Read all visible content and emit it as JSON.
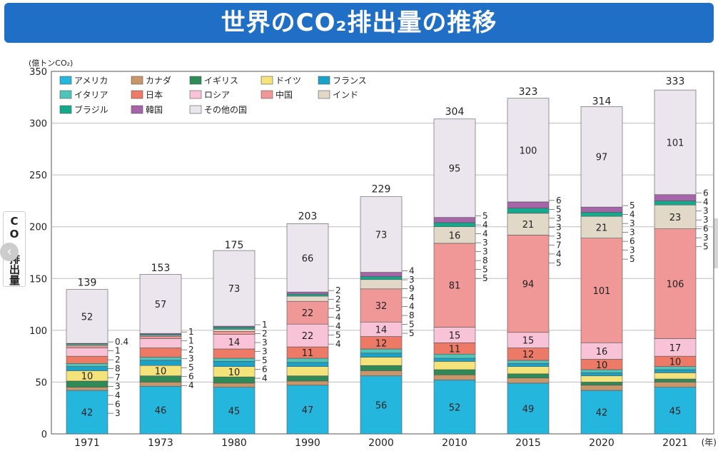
{
  "title": "世界のCO₂排出量の推移",
  "side_label": "CO₂排出量",
  "colors": {
    "banner": "#1f6fc6"
  },
  "chart_data": {
    "type": "bar",
    "stacked": true,
    "ylabel": "(億トンCO₂)",
    "xlabel": "(年)",
    "ylim": [
      0,
      350
    ],
    "yticks": [
      0,
      50,
      100,
      150,
      200,
      250,
      300,
      350
    ],
    "grid": true,
    "legend_position": "top-left",
    "categories": [
      "1971",
      "1973",
      "1980",
      "1990",
      "2000",
      "2010",
      "2015",
      "2020",
      "2021"
    ],
    "totals": [
      139,
      153,
      175,
      203,
      229,
      304,
      323,
      314,
      333
    ],
    "series": [
      {
        "name": "アメリカ",
        "color": "#25b6de",
        "values": [
          42,
          46,
          45,
          47,
          56,
          52,
          49,
          42,
          45
        ]
      },
      {
        "name": "カナダ",
        "color": "#c8966a",
        "values": [
          3,
          4,
          4,
          4,
          5,
          5,
          5,
          5,
          5
        ]
      },
      {
        "name": "イギリス",
        "color": "#2e8b57",
        "values": [
          6,
          6,
          6,
          5,
          5,
          5,
          4,
          3,
          3
        ]
      },
      {
        "name": "ドイツ",
        "color": "#f3e37a",
        "values": [
          10,
          10,
          10,
          9,
          8,
          8,
          7,
          6,
          6
        ]
      },
      {
        "name": "フランス",
        "color": "#1ba2c8",
        "values": [
          4,
          5,
          5,
          4,
          4,
          3,
          3,
          3,
          3
        ]
      },
      {
        "name": "イタリア",
        "color": "#4fc4ba",
        "values": [
          3,
          3,
          3,
          4,
          4,
          4,
          3,
          3,
          3
        ]
      },
      {
        "name": "日本",
        "color": "#ec7a66",
        "values": [
          7,
          9,
          9,
          11,
          12,
          11,
          12,
          10,
          10
        ]
      },
      {
        "name": "ロシア",
        "color": "#f8c3d6",
        "values": [
          8,
          9,
          14,
          22,
          14,
          15,
          15,
          16,
          17
        ]
      },
      {
        "name": "中国",
        "color": "#f09897",
        "values": [
          2,
          2,
          3,
          22,
          32,
          81,
          94,
          101,
          106
        ]
      },
      {
        "name": "インド",
        "color": "#e2d8c8",
        "values": [
          1,
          1,
          2,
          5,
          9,
          16,
          21,
          21,
          23
        ]
      },
      {
        "name": "ブラジル",
        "color": "#14a98b",
        "values": [
          1,
          1,
          2,
          2,
          3,
          4,
          5,
          4,
          4
        ]
      },
      {
        "name": "韓国",
        "color": "#a665a9",
        "values": [
          0.4,
          1,
          1,
          2,
          4,
          5,
          6,
          5,
          6
        ]
      },
      {
        "name": "その他の国",
        "color": "#ebe5ee",
        "values": [
          52,
          57,
          73,
          66,
          73,
          95,
          100,
          97,
          101
        ]
      }
    ],
    "annotations": [
      {
        "category": "1971",
        "labels": [
          "0.4",
          "1",
          "2",
          "8",
          "7",
          "3",
          "4",
          "6",
          "3"
        ]
      },
      {
        "category": "1973",
        "labels": [
          "1",
          "1",
          "2",
          "3",
          "5",
          "6",
          "4"
        ]
      },
      {
        "category": "1980",
        "labels": [
          "1",
          "2",
          "3",
          "3",
          "5",
          "6",
          "4"
        ]
      },
      {
        "category": "1990",
        "labels": [
          "2",
          "2",
          "5",
          "4",
          "4",
          "5",
          "4"
        ]
      },
      {
        "category": "2000",
        "labels": [
          "4",
          "3",
          "9",
          "4",
          "4",
          "8",
          "5",
          "5"
        ]
      },
      {
        "category": "2010",
        "labels": [
          "5",
          "4",
          "4",
          "3",
          "3",
          "8",
          "5",
          "5"
        ]
      },
      {
        "category": "2015",
        "labels": [
          "6",
          "5",
          "3",
          "3",
          "3",
          "7",
          "4",
          "5"
        ]
      },
      {
        "category": "2020",
        "labels": [
          "5",
          "4",
          "3",
          "3",
          "6",
          "3",
          "5"
        ]
      },
      {
        "category": "2021",
        "labels": [
          "6",
          "4",
          "3",
          "3",
          "6",
          "3",
          "5"
        ]
      }
    ]
  }
}
